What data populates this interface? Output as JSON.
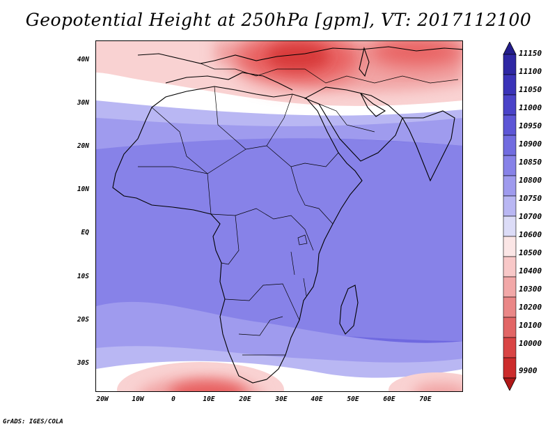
{
  "title": "Geopotential Height at 250hPa [gpm], VT: 2017112100",
  "credit": "GrADS: IGES/COLA",
  "lat_labels": [
    "40N",
    "30N",
    "20N",
    "10N",
    "EQ",
    "10S",
    "20S",
    "30S"
  ],
  "lon_labels": [
    "20W",
    "10W",
    "0",
    "10E",
    "20E",
    "30E",
    "40E",
    "50E",
    "60E",
    "70E"
  ],
  "colorbar": {
    "levels": [
      "11150",
      "11100",
      "11050",
      "11000",
      "10950",
      "10900",
      "10850",
      "10800",
      "10750",
      "10700",
      "10600",
      "10500",
      "10400",
      "10300",
      "10200",
      "10100",
      "10000",
      "9900"
    ],
    "colors": [
      "#231d8c",
      "#2e27a3",
      "#3a33b8",
      "#4a43c8",
      "#5d56d6",
      "#716ce0",
      "#8782e8",
      "#9f9bee",
      "#b9b7f3",
      "#dcdcf7",
      "#fbe6e6",
      "#f8c8c8",
      "#f2a8a8",
      "#ea8787",
      "#e26666",
      "#d94545",
      "#cc2c2c",
      "#b01818"
    ]
  },
  "map": {
    "contour_colors": {
      "deep_red": "#d83a3a",
      "red": "#e86060",
      "salmon": "#f1a5a5",
      "light_pink": "#f9d2d2",
      "white": "#ffffff",
      "pale_blue": "#b9b7f3",
      "light_blue": "#9f9bee",
      "mid_blue": "#8782e8",
      "blue": "#6f69e0"
    }
  }
}
